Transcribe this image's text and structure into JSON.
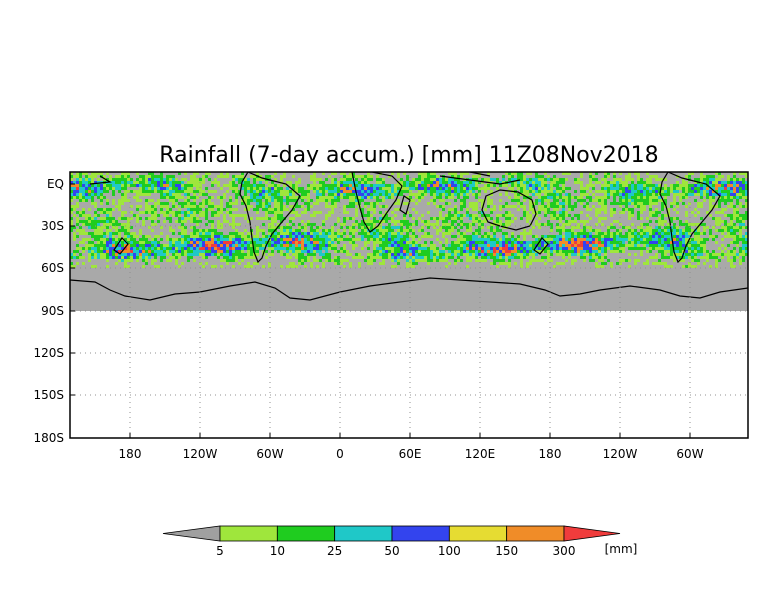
{
  "title": "Rainfall (7-day accum.) [mm] 11Z08Nov2018",
  "map": {
    "y_tick_labels": [
      "EQ",
      "30S",
      "60S",
      "90S",
      "120S",
      "150S",
      "180S"
    ],
    "x_tick_labels": [
      "180",
      "120W",
      "60W",
      "0",
      "60E",
      "120E",
      "180",
      "120W",
      "60W"
    ],
    "ocean_color": "#a9a9a9",
    "grid": true
  },
  "colorbar": {
    "levels": [
      "5",
      "10",
      "25",
      "50",
      "100",
      "150",
      "300"
    ],
    "unit": "[mm]",
    "colors": [
      "#a0a0a0",
      "#9fe63c",
      "#1fcc1f",
      "#1fc8c8",
      "#3344ee",
      "#e6dc32",
      "#f08c28",
      "#f03c3c"
    ]
  }
}
